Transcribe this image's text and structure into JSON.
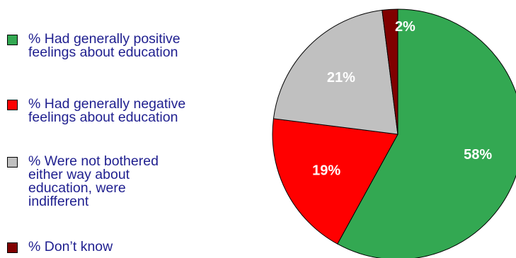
{
  "chart_data": {
    "type": "pie",
    "title": "",
    "start_angle_deg": 0,
    "direction": "clockwise",
    "slices": [
      {
        "label": "% Had generally positive\nfeelings about education",
        "value": 58,
        "value_label": "58%",
        "color": "#33a852"
      },
      {
        "label": "% Had generally negative\nfeelings about education",
        "value": 19,
        "value_label": "19%",
        "color": "#ff0000"
      },
      {
        "label": "% Were not bothered\neither way about\neducation, were\nindifferent",
        "value": 21,
        "value_label": "21%",
        "color": "#c0c0c0"
      },
      {
        "label": "% Don’t know",
        "value": 2,
        "value_label": "2%",
        "color": "#800000"
      }
    ],
    "legend_position": "left",
    "slice_order_in_legend": [
      0,
      1,
      2,
      3
    ],
    "data_labels_color": "#ffffff"
  }
}
